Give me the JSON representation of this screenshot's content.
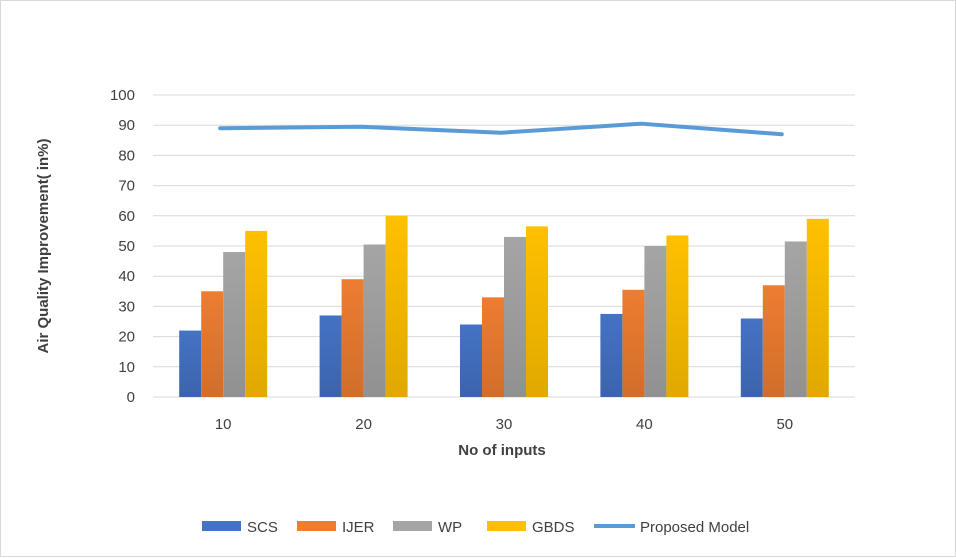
{
  "chart_data": {
    "type": "bar",
    "title": "",
    "xlabel": "No of  inputs",
    "ylabel": "Air Quality Improvement( in%)",
    "categories": [
      "10",
      "20",
      "30",
      "40",
      "50"
    ],
    "ylim": [
      0,
      100
    ],
    "yticks": [
      0,
      10,
      20,
      30,
      40,
      50,
      60,
      70,
      80,
      90,
      100
    ],
    "grid": "horizontal",
    "legend_position": "bottom",
    "series": [
      {
        "name": "SCS",
        "kind": "bar",
        "color": "#4472c4",
        "values": [
          22,
          27,
          24,
          27.5,
          26
        ]
      },
      {
        "name": "IJER",
        "kind": "bar",
        "color": "#ed7d31",
        "values": [
          35,
          39,
          33,
          35.5,
          37
        ]
      },
      {
        "name": "WP",
        "kind": "bar",
        "color": "#a5a5a5",
        "values": [
          48,
          50.5,
          53,
          50,
          51.5
        ]
      },
      {
        "name": "GBDS",
        "kind": "bar",
        "color": "#ffc000",
        "values": [
          55,
          60,
          56.5,
          53.5,
          59
        ]
      },
      {
        "name": "Proposed Model",
        "kind": "line",
        "color": "#5b9bd5",
        "values": [
          89,
          89.5,
          87.5,
          90.5,
          87
        ]
      }
    ]
  }
}
